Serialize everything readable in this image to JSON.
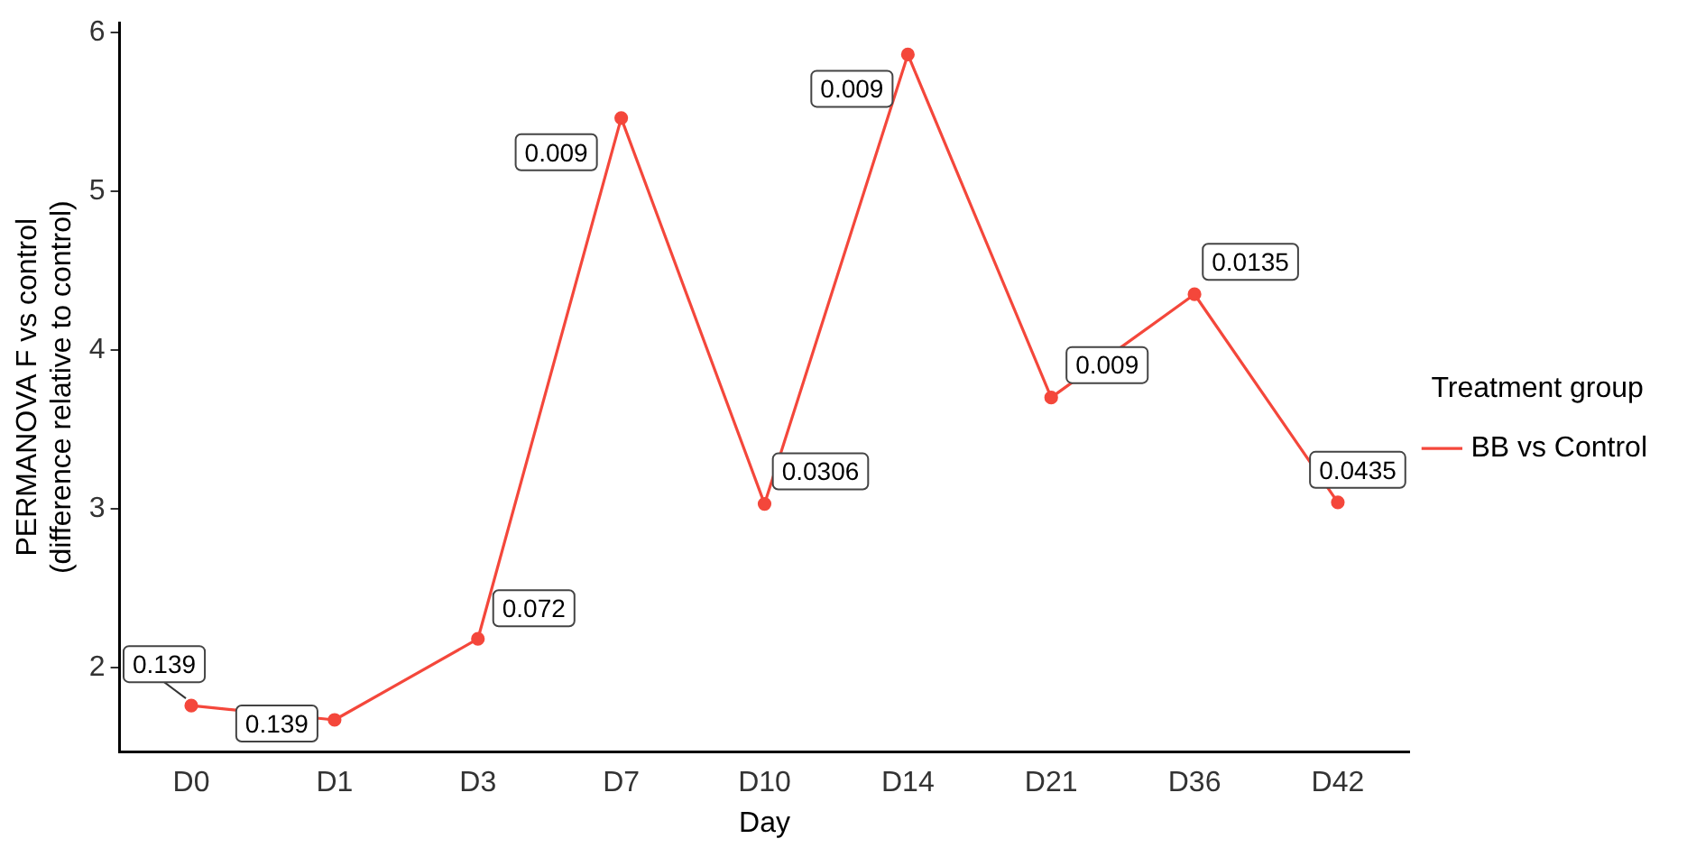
{
  "chart_data": {
    "type": "line",
    "xlabel": "Day",
    "ylabel": "PERMANOVA F vs control\n(difference relative to control)",
    "legend_title": "Treatment group",
    "legend": "right",
    "grid": false,
    "marker": "circle",
    "line_style": "solid",
    "categories": [
      "D0",
      "D1",
      "D3",
      "D7",
      "D10",
      "D14",
      "D21",
      "D36",
      "D42"
    ],
    "ylim": [
      1.47,
      6.06
    ],
    "yticks": [
      2,
      3,
      4,
      5,
      6
    ],
    "series": [
      {
        "name": "BB vs Control",
        "color": "#f4473b",
        "values": [
          1.76,
          1.67,
          2.18,
          5.46,
          3.03,
          5.86,
          3.7,
          4.35,
          3.04
        ]
      }
    ],
    "annotations": [
      {
        "text": "0.139",
        "x": "D0",
        "y": 1.76
      },
      {
        "text": "0.139",
        "x": "D1",
        "y": 1.67
      },
      {
        "text": "0.072",
        "x": "D3",
        "y": 2.18
      },
      {
        "text": "0.009",
        "x": "D7",
        "y": 5.46
      },
      {
        "text": "0.0306",
        "x": "D10",
        "y": 3.03
      },
      {
        "text": "0.009",
        "x": "D14",
        "y": 5.86
      },
      {
        "text": "0.009",
        "x": "D21",
        "y": 3.7
      },
      {
        "text": "0.0135",
        "x": "D36",
        "y": 4.35
      },
      {
        "text": "0.0435",
        "x": "D42",
        "y": 3.04
      }
    ]
  }
}
